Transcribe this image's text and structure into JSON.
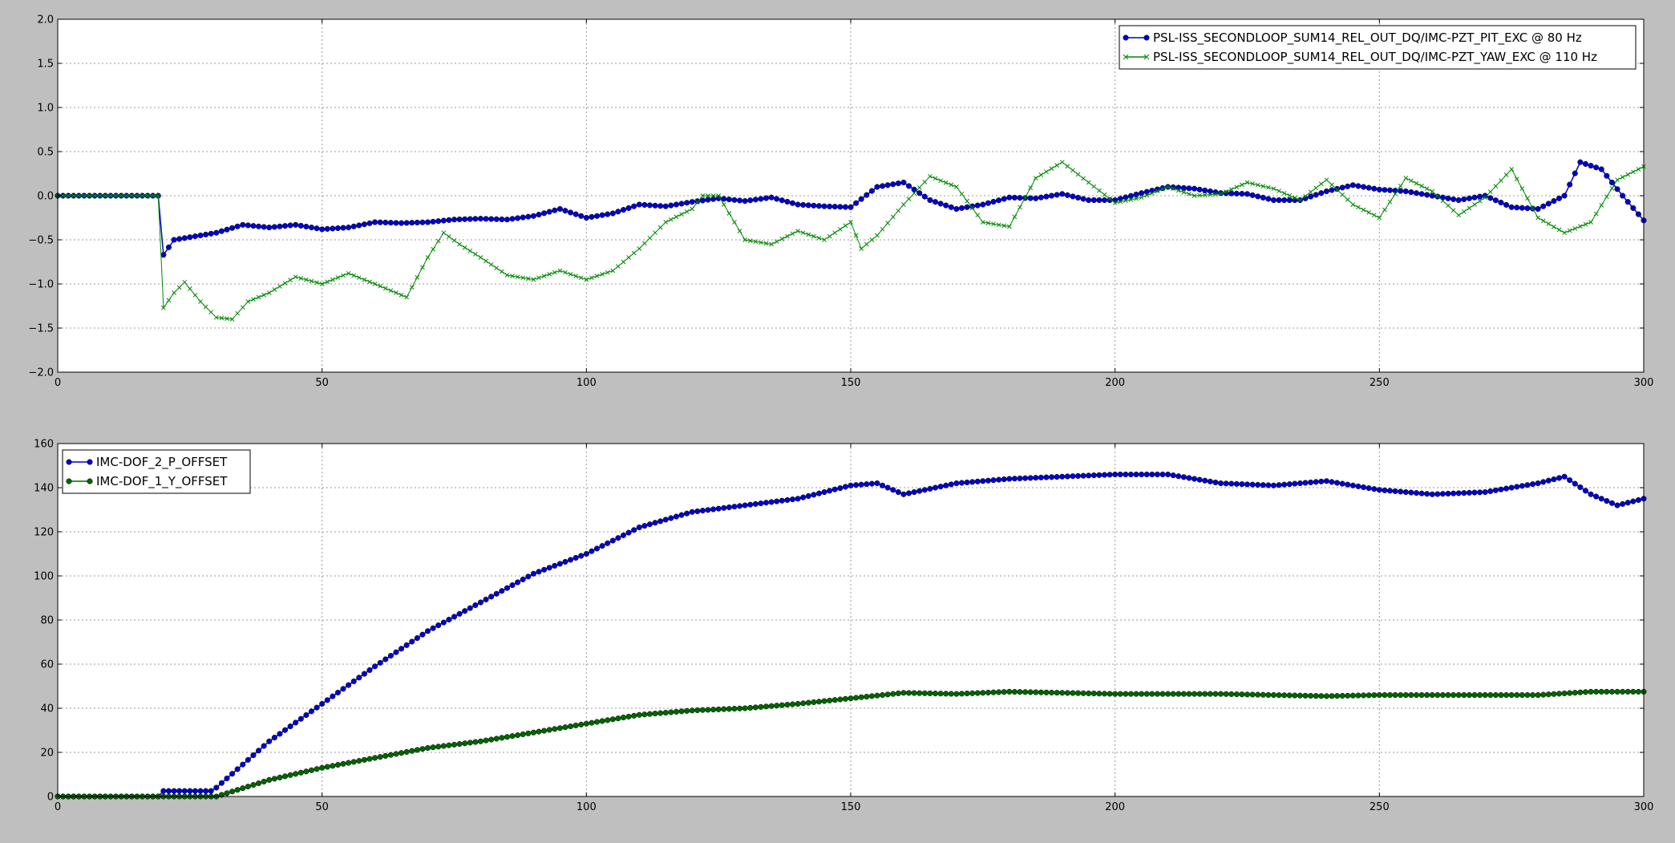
{
  "figure": {
    "background": "#bfbfbf",
    "axes_background": "#ffffff"
  },
  "chart_data": [
    {
      "type": "line",
      "title": "",
      "xlabel": "",
      "ylabel": "",
      "xlim": [
        0,
        300
      ],
      "ylim": [
        -2.0,
        2.0
      ],
      "xticks": [
        0,
        50,
        100,
        150,
        200,
        250,
        300
      ],
      "yticks": [
        -2.0,
        -1.5,
        -1.0,
        -0.5,
        0.0,
        0.5,
        1.0,
        1.5,
        2.0
      ],
      "xtick_labels": [
        "0",
        "50",
        "100",
        "150",
        "200",
        "250",
        "300"
      ],
      "ytick_labels": [
        "−2.0",
        "−1.5",
        "−1.0",
        "−0.5",
        "0.0",
        "0.5",
        "1.0",
        "1.5",
        "2.0"
      ],
      "grid": true,
      "legend_position": "top-right",
      "series": [
        {
          "name": "PSL-ISS_SECONDLOOP_SUM14_REL_OUT_DQ/IMC-PZT_PIT_EXC @ 80 Hz",
          "color": "#0000cc",
          "marker": "circle",
          "x": [
            0,
            5,
            10,
            15,
            19,
            20,
            22,
            25,
            30,
            35,
            40,
            45,
            50,
            55,
            60,
            65,
            70,
            75,
            80,
            85,
            90,
            95,
            100,
            105,
            110,
            115,
            120,
            125,
            130,
            135,
            140,
            145,
            150,
            155,
            160,
            165,
            170,
            175,
            180,
            185,
            190,
            195,
            200,
            205,
            210,
            215,
            220,
            225,
            230,
            235,
            240,
            245,
            250,
            255,
            260,
            265,
            270,
            275,
            280,
            285,
            288,
            292,
            296,
            300
          ],
          "y": [
            0,
            0,
            0,
            0,
            0,
            -0.67,
            -0.5,
            -0.47,
            -0.42,
            -0.33,
            -0.36,
            -0.33,
            -0.38,
            -0.36,
            -0.3,
            -0.31,
            -0.3,
            -0.27,
            -0.26,
            -0.27,
            -0.23,
            -0.15,
            -0.25,
            -0.2,
            -0.1,
            -0.12,
            -0.07,
            -0.03,
            -0.06,
            -0.02,
            -0.1,
            -0.12,
            -0.13,
            0.1,
            0.15,
            -0.05,
            -0.15,
            -0.1,
            -0.02,
            -0.03,
            0.02,
            -0.05,
            -0.05,
            0.03,
            0.1,
            0.08,
            0.03,
            0.02,
            -0.05,
            -0.05,
            0.05,
            0.12,
            0.07,
            0.05,
            0.0,
            -0.05,
            0.0,
            -0.13,
            -0.15,
            0.0,
            0.38,
            0.3,
            0.0,
            -0.28
          ]
        },
        {
          "name": "PSL-ISS_SECONDLOOP_SUM14_REL_OUT_DQ/IMC-PZT_YAW_EXC @ 110 Hz",
          "color": "#008800",
          "marker": "x",
          "x": [
            0,
            5,
            10,
            15,
            19,
            20,
            22,
            24,
            27,
            30,
            33,
            36,
            40,
            45,
            50,
            55,
            60,
            66,
            70,
            73,
            76,
            80,
            85,
            90,
            95,
            100,
            105,
            110,
            115,
            120,
            122,
            125,
            130,
            135,
            140,
            145,
            150,
            152,
            155,
            160,
            165,
            170,
            175,
            180,
            185,
            190,
            195,
            200,
            205,
            210,
            215,
            220,
            225,
            230,
            235,
            240,
            245,
            250,
            255,
            260,
            265,
            270,
            275,
            280,
            285,
            290,
            295,
            300
          ],
          "y": [
            0,
            0,
            0,
            0,
            0,
            -1.27,
            -1.1,
            -0.98,
            -1.2,
            -1.38,
            -1.4,
            -1.2,
            -1.1,
            -0.92,
            -1.0,
            -0.88,
            -1.0,
            -1.15,
            -0.7,
            -0.42,
            -0.55,
            -0.7,
            -0.9,
            -0.95,
            -0.85,
            -0.95,
            -0.85,
            -0.6,
            -0.3,
            -0.15,
            0.0,
            0.0,
            -0.5,
            -0.55,
            -0.4,
            -0.5,
            -0.3,
            -0.6,
            -0.45,
            -0.1,
            0.22,
            0.1,
            -0.3,
            -0.35,
            0.2,
            0.38,
            0.15,
            -0.08,
            -0.02,
            0.1,
            0.0,
            0.02,
            0.15,
            0.08,
            -0.05,
            0.18,
            -0.1,
            -0.25,
            0.2,
            0.05,
            -0.22,
            -0.02,
            0.3,
            -0.25,
            -0.42,
            -0.3,
            0.18,
            0.33
          ]
        }
      ]
    },
    {
      "type": "line",
      "title": "",
      "xlabel": "",
      "ylabel": "",
      "xlim": [
        0,
        300
      ],
      "ylim": [
        0,
        160
      ],
      "xticks": [
        0,
        50,
        100,
        150,
        200,
        250,
        300
      ],
      "yticks": [
        0,
        20,
        40,
        60,
        80,
        100,
        120,
        140,
        160
      ],
      "xtick_labels": [
        "0",
        "50",
        "100",
        "150",
        "200",
        "250",
        "300"
      ],
      "ytick_labels": [
        "0",
        "20",
        "40",
        "60",
        "80",
        "100",
        "120",
        "140",
        "160"
      ],
      "grid": true,
      "legend_position": "top-left",
      "series": [
        {
          "name": "IMC-DOF_2_P_OFFSET",
          "color": "#0000cc",
          "marker": "circle",
          "x": [
            0,
            19,
            20,
            29,
            30,
            40,
            50,
            60,
            70,
            80,
            90,
            100,
            110,
            120,
            130,
            140,
            150,
            155,
            160,
            170,
            180,
            190,
            200,
            210,
            220,
            230,
            240,
            250,
            260,
            270,
            280,
            285,
            290,
            295,
            300
          ],
          "y": [
            0,
            0,
            2.5,
            2.5,
            4,
            25,
            42,
            59,
            75,
            88,
            101,
            110,
            122,
            129,
            132,
            135,
            141,
            142,
            137,
            142,
            144,
            145,
            146,
            146,
            142,
            141,
            143,
            139,
            137,
            138,
            142,
            145,
            137,
            132,
            135
          ]
        },
        {
          "name": "IMC-DOF_1_Y_OFFSET",
          "color": "#006600",
          "marker": "circle",
          "x": [
            0,
            30,
            40,
            50,
            60,
            70,
            80,
            90,
            100,
            110,
            120,
            130,
            140,
            150,
            160,
            170,
            180,
            190,
            200,
            210,
            220,
            230,
            240,
            250,
            260,
            270,
            280,
            290,
            300
          ],
          "y": [
            0,
            0,
            7.5,
            13,
            17.5,
            22,
            25,
            29,
            33,
            37,
            39,
            40,
            42,
            44.5,
            47,
            46.5,
            47.5,
            47,
            46.5,
            46.5,
            46.5,
            46,
            45.5,
            46,
            46,
            46,
            46,
            47.5,
            47.5
          ]
        }
      ]
    }
  ]
}
